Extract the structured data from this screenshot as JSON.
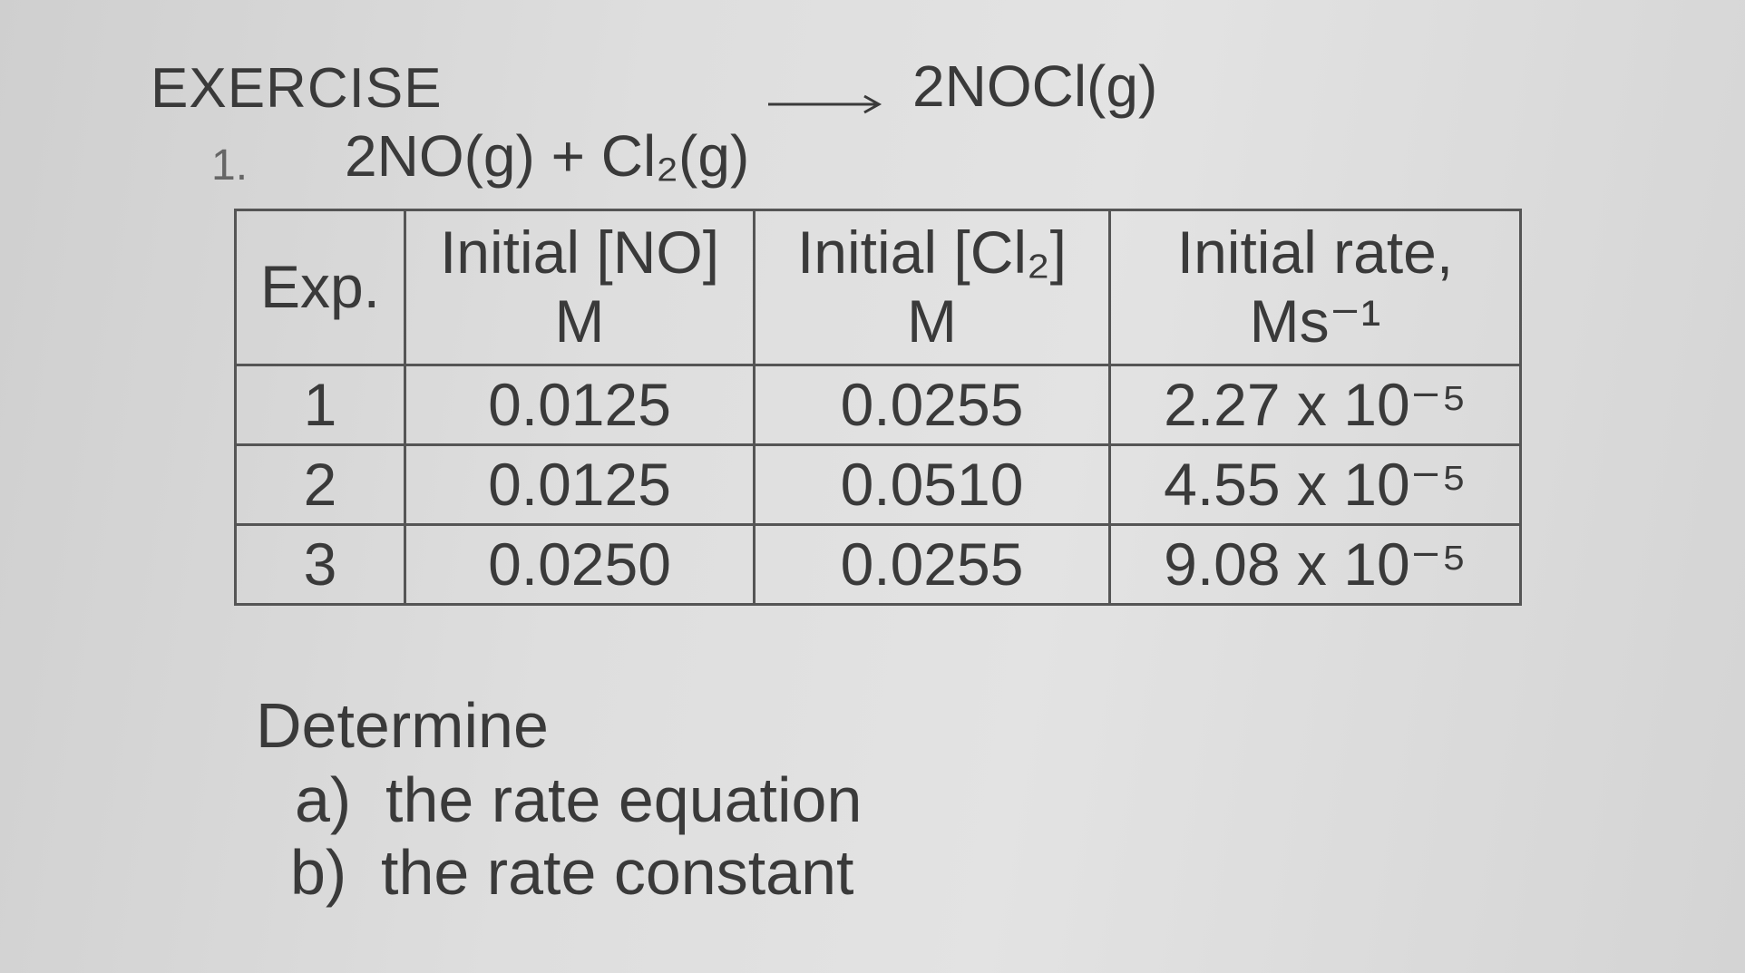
{
  "exercise": {
    "heading": "EXERCISE",
    "number": "1.",
    "reactants": "2NO(g) + Cl₂(g)",
    "product": "2NOCl(g)",
    "table": {
      "header": [
        [
          "Exp."
        ],
        [
          "Initial [NO]",
          "M"
        ],
        [
          "Initial [Cl₂]",
          "M"
        ],
        [
          "Initial rate,",
          "Ms⁻¹"
        ]
      ],
      "rows": [
        [
          "1",
          "0.0125",
          "0.0255",
          "2.27 x 10⁻⁵"
        ],
        [
          "2",
          "0.0125",
          "0.0510",
          "4.55 x 10⁻⁵"
        ],
        [
          "3",
          "0.0250",
          "0.0255",
          "9.08 x 10⁻⁵"
        ]
      ]
    },
    "prompt": "Determine",
    "questions": [
      {
        "marker": "a)",
        "text": "the rate equation"
      },
      {
        "marker": "b)",
        "text": "the rate constant"
      }
    ]
  }
}
